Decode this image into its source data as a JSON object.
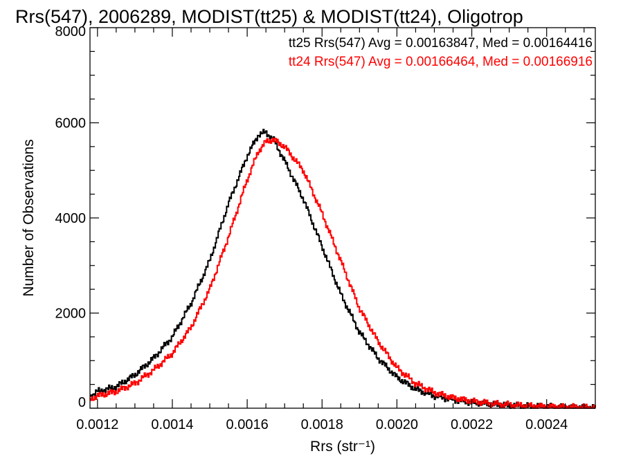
{
  "chart_data": {
    "type": "line",
    "style": "step-histogram",
    "title": "Rrs(547), 2006289, MODIST(tt25) & MODIST(tt24), Oligotrop",
    "xlabel": "Rrs (str⁻¹)",
    "ylabel": "Number of Observations",
    "xlim": [
      0.00118,
      0.00253
    ],
    "ylim": [
      0,
      8000
    ],
    "x_ticks": [
      0.0012,
      0.0014,
      0.0016,
      0.0018,
      0.002,
      0.0022,
      0.0024
    ],
    "x_tick_labels": [
      "0.0012",
      "0.0014",
      "0.0016",
      "0.0018",
      "0.0020",
      "0.0022",
      "0.0024"
    ],
    "y_ticks": [
      0,
      2000,
      4000,
      6000,
      8000
    ],
    "y_tick_labels": [
      "0",
      "2000",
      "4000",
      "6000",
      "8000"
    ],
    "grid": false,
    "legend_placement": "top-right",
    "series": [
      {
        "name": "tt25",
        "label": "tt25 Rrs(547) Avg = 0.00163847, Med = 0.00164416",
        "color": "#000000",
        "x": [
          0.00118,
          0.0012,
          0.00125,
          0.0013,
          0.00135,
          0.0014,
          0.00145,
          0.0015,
          0.00155,
          0.0016,
          0.00163,
          0.00165,
          0.00167,
          0.0017,
          0.00175,
          0.0018,
          0.00185,
          0.0019,
          0.00195,
          0.002,
          0.00205,
          0.0021,
          0.00215,
          0.0022,
          0.00225,
          0.0023,
          0.00235,
          0.0024,
          0.00245,
          0.0025,
          0.00253
        ],
        "y": [
          250,
          350,
          450,
          700,
          1050,
          1500,
          2200,
          3100,
          4300,
          5300,
          5750,
          5800,
          5650,
          5200,
          4400,
          3400,
          2400,
          1600,
          1050,
          650,
          400,
          260,
          180,
          120,
          90,
          60,
          40,
          30,
          20,
          15,
          10
        ]
      },
      {
        "name": "tt24",
        "label": "tt24 Rrs(547) Avg = 0.00166464, Med = 0.00166916",
        "color": "#ff0000",
        "x": [
          0.00118,
          0.0012,
          0.00125,
          0.0013,
          0.00135,
          0.0014,
          0.00145,
          0.0015,
          0.00155,
          0.0016,
          0.00163,
          0.00165,
          0.00167,
          0.0017,
          0.00175,
          0.0018,
          0.00185,
          0.0019,
          0.00195,
          0.002,
          0.00205,
          0.0021,
          0.00215,
          0.0022,
          0.00225,
          0.0023,
          0.00235,
          0.0024,
          0.00245,
          0.0025,
          0.00253
        ],
        "y": [
          180,
          260,
          350,
          520,
          800,
          1150,
          1700,
          2500,
          3600,
          4800,
          5400,
          5600,
          5650,
          5500,
          5000,
          4100,
          3100,
          2100,
          1400,
          850,
          520,
          330,
          220,
          150,
          100,
          70,
          50,
          35,
          25,
          18,
          12
        ]
      }
    ]
  }
}
